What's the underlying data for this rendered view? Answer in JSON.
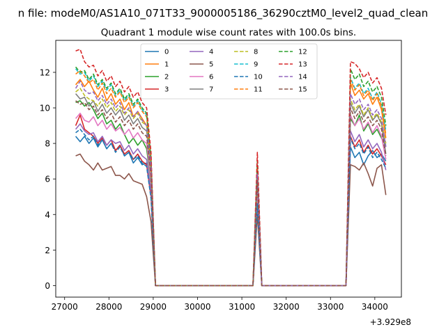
{
  "suptitle": "n file: modeM0/AS1A10_071T33_9000005186_36290cztM0_level2_quad_clean",
  "chart_data": {
    "type": "line",
    "title": "Quadrant 1 module wise count rates with 100.0s bins.",
    "xlabel": "",
    "ylabel": "",
    "x_offset_label": "+3.929e8",
    "xlim": [
      26800,
      34600
    ],
    "ylim": [
      -0.65,
      13.8
    ],
    "xticks": [
      "27000",
      "28000",
      "29000",
      "30000",
      "31000",
      "32000",
      "33000",
      "34000"
    ],
    "yticks": [
      "0",
      "2",
      "4",
      "6",
      "8",
      "10",
      "12"
    ],
    "legend_position": "top-center",
    "grid": false,
    "segments": {
      "seg1": [
        27250,
        27350,
        27450,
        27550,
        27650,
        27750,
        27850,
        27950,
        28050,
        28150,
        28250,
        28350,
        28450,
        28550,
        28650,
        28750,
        28850,
        28950,
        29050
      ],
      "gap1_end": 31150,
      "seg2": [
        31250,
        31350,
        31450
      ],
      "gap2_end": 33350,
      "seg3": [
        33450,
        33550,
        33650,
        33750,
        33850,
        33950,
        34050,
        34150,
        34250
      ]
    },
    "series": [
      {
        "name": "0",
        "color": "#1f77b4",
        "dash": false,
        "seg1": [
          8.4,
          8.1,
          8.4,
          8.0,
          8.3,
          7.8,
          8.2,
          7.7,
          8.0,
          7.6,
          7.9,
          7.3,
          7.5,
          6.9,
          7.2,
          6.8,
          6.9,
          5.2,
          0
        ],
        "peak": 4.5,
        "seg3": [
          7.8,
          7.2,
          7.5,
          6.8,
          7.3,
          7.6,
          7.2,
          7.4,
          7.0
        ]
      },
      {
        "name": "1",
        "color": "#ff7f0e",
        "dash": false,
        "seg1": [
          11.3,
          11.6,
          11.2,
          11.5,
          11.0,
          10.6,
          11.1,
          10.4,
          10.8,
          10.2,
          10.5,
          9.9,
          10.3,
          9.5,
          9.8,
          9.4,
          9.0,
          6.8,
          0
        ],
        "peak": 6.5,
        "seg3": [
          11.4,
          10.7,
          11.0,
          10.5,
          10.8,
          10.2,
          10.6,
          9.9,
          8.3
        ]
      },
      {
        "name": "2",
        "color": "#2ca02c",
        "dash": false,
        "seg1": [
          10.3,
          10.4,
          10.1,
          10.3,
          9.9,
          9.4,
          9.7,
          9.1,
          9.3,
          8.8,
          9.1,
          8.5,
          8.0,
          8.3,
          7.9,
          8.2,
          7.7,
          5.8,
          0
        ],
        "peak": 5.8,
        "seg3": [
          9.4,
          9.0,
          9.6,
          8.7,
          9.1,
          8.5,
          8.8,
          8.3,
          7.9
        ]
      },
      {
        "name": "3",
        "color": "#d62728",
        "dash": false,
        "seg1": [
          9.0,
          9.6,
          8.8,
          8.6,
          8.4,
          8.0,
          8.3,
          7.9,
          8.2,
          7.6,
          7.9,
          7.4,
          7.6,
          7.1,
          7.4,
          7.0,
          6.8,
          5.0,
          0
        ],
        "peak": 4.5,
        "seg3": [
          8.4,
          7.8,
          8.2,
          7.5,
          7.9,
          7.4,
          7.7,
          7.3,
          6.8
        ]
      },
      {
        "name": "4",
        "color": "#9467bd",
        "dash": false,
        "seg1": [
          8.8,
          9.1,
          8.7,
          8.5,
          8.6,
          8.1,
          8.4,
          7.9,
          8.2,
          8.0,
          8.1,
          7.6,
          7.9,
          7.4,
          7.7,
          7.3,
          7.1,
          5.3,
          0
        ],
        "peak": 4.8,
        "seg3": [
          8.7,
          8.1,
          8.5,
          7.8,
          8.2,
          7.7,
          8.0,
          7.5,
          6.5
        ]
      },
      {
        "name": "5",
        "color": "#8c564b",
        "dash": false,
        "seg1": [
          7.3,
          7.4,
          7.0,
          6.8,
          6.5,
          6.9,
          6.5,
          6.6,
          6.7,
          6.2,
          6.2,
          6.0,
          6.3,
          5.9,
          5.8,
          5.7,
          5.0,
          3.6,
          0
        ],
        "peak": 4.0,
        "seg3": [
          6.8,
          6.7,
          6.5,
          6.9,
          6.3,
          5.6,
          6.6,
          6.8,
          5.1
        ]
      },
      {
        "name": "6",
        "color": "#e377c2",
        "dash": false,
        "seg1": [
          9.4,
          9.7,
          9.3,
          9.2,
          9.5,
          9.0,
          9.3,
          8.8,
          9.1,
          8.7,
          8.9,
          8.5,
          8.8,
          8.3,
          8.6,
          8.2,
          8.0,
          5.9,
          0
        ],
        "peak": 5.2,
        "seg3": [
          9.6,
          9.0,
          9.4,
          8.8,
          9.2,
          8.6,
          9.0,
          8.4,
          7.1
        ]
      },
      {
        "name": "7",
        "color": "#7f7f7f",
        "dash": false,
        "seg1": [
          10.8,
          10.5,
          10.6,
          10.1,
          10.4,
          9.8,
          10.2,
          9.7,
          10.0,
          9.6,
          9.9,
          9.3,
          9.6,
          9.1,
          9.4,
          8.9,
          8.7,
          6.4,
          0
        ],
        "peak": 6.0,
        "seg3": [
          10.3,
          9.7,
          10.1,
          9.5,
          9.9,
          9.3,
          9.6,
          9.1,
          7.4
        ]
      },
      {
        "name": "8",
        "color": "#bcbd22",
        "dash": true,
        "seg1": [
          10.9,
          11.1,
          10.7,
          10.5,
          10.4,
          10.1,
          10.5,
          10.0,
          10.3,
          9.8,
          10.1,
          9.6,
          9.9,
          9.4,
          9.7,
          9.2,
          9.0,
          6.6,
          0
        ],
        "peak": 6.2,
        "seg3": [
          10.5,
          9.9,
          10.2,
          9.6,
          10.0,
          9.4,
          9.7,
          9.2,
          8.0
        ]
      },
      {
        "name": "9",
        "color": "#17becf",
        "dash": true,
        "seg1": [
          12.2,
          11.9,
          12.0,
          11.5,
          11.8,
          11.2,
          11.5,
          11.0,
          11.3,
          10.7,
          11.0,
          10.4,
          10.7,
          10.1,
          10.4,
          9.9,
          9.6,
          7.1,
          0
        ],
        "peak": 6.8,
        "seg3": [
          11.7,
          11.1,
          11.4,
          10.8,
          11.1,
          10.5,
          10.9,
          10.2,
          8.7
        ]
      },
      {
        "name": "10",
        "color": "#1f77b4",
        "dash": true,
        "seg1": [
          8.6,
          8.8,
          8.5,
          8.2,
          8.4,
          7.9,
          8.2,
          7.7,
          8.0,
          7.5,
          7.8,
          7.3,
          7.5,
          7.1,
          7.3,
          6.9,
          6.7,
          4.9,
          0
        ],
        "peak": 4.6,
        "seg3": [
          8.3,
          7.7,
          8.0,
          7.4,
          7.8,
          7.2,
          7.5,
          7.1,
          6.6
        ]
      },
      {
        "name": "11",
        "color": "#ff7f0e",
        "dash": true,
        "seg1": [
          11.9,
          12.1,
          11.8,
          11.4,
          11.6,
          11.0,
          11.4,
          10.8,
          11.1,
          10.6,
          10.9,
          10.3,
          10.6,
          10.0,
          10.3,
          9.8,
          9.5,
          7.0,
          0
        ],
        "peak": 6.7,
        "seg3": [
          11.6,
          11.0,
          11.3,
          10.7,
          11.0,
          10.4,
          10.8,
          10.1,
          8.5
        ]
      },
      {
        "name": "12",
        "color": "#2ca02c",
        "dash": true,
        "seg1": [
          12.3,
          12.0,
          12.1,
          11.6,
          11.9,
          11.3,
          11.6,
          11.1,
          11.4,
          10.8,
          11.1,
          10.5,
          10.8,
          10.2,
          10.5,
          10.0,
          9.7,
          7.2,
          0
        ],
        "peak": 7.0,
        "seg3": [
          12.2,
          11.6,
          11.9,
          11.2,
          11.5,
          10.9,
          11.2,
          10.6,
          9.0
        ]
      },
      {
        "name": "13",
        "color": "#d62728",
        "dash": true,
        "seg1": [
          13.2,
          13.3,
          12.6,
          12.3,
          12.4,
          11.8,
          12.1,
          11.5,
          11.8,
          11.2,
          11.5,
          10.9,
          11.2,
          10.6,
          10.9,
          10.3,
          10.0,
          7.5,
          0
        ],
        "peak": 7.5,
        "seg3": [
          12.6,
          12.5,
          12.2,
          11.7,
          12.0,
          11.4,
          11.7,
          11.1,
          9.6
        ]
      },
      {
        "name": "14",
        "color": "#9467bd",
        "dash": true,
        "seg1": [
          11.1,
          11.5,
          11.0,
          10.8,
          10.9,
          10.4,
          10.7,
          10.2,
          10.5,
          10.0,
          10.3,
          9.7,
          10.0,
          9.5,
          9.8,
          9.3,
          9.0,
          6.7,
          0
        ],
        "peak": 6.3,
        "seg3": [
          10.8,
          10.2,
          10.5,
          9.9,
          10.2,
          9.6,
          9.9,
          9.4,
          7.8
        ]
      },
      {
        "name": "15",
        "color": "#8c564b",
        "dash": true,
        "seg1": [
          10.4,
          10.2,
          10.3,
          9.9,
          10.1,
          9.6,
          9.9,
          9.4,
          9.7,
          9.2,
          9.5,
          9.0,
          9.3,
          8.8,
          9.1,
          8.6,
          8.4,
          6.2,
          0
        ],
        "peak": 5.9,
        "seg3": [
          10.0,
          9.4,
          9.8,
          9.2,
          9.5,
          9.0,
          9.3,
          8.8,
          7.3
        ]
      }
    ]
  }
}
